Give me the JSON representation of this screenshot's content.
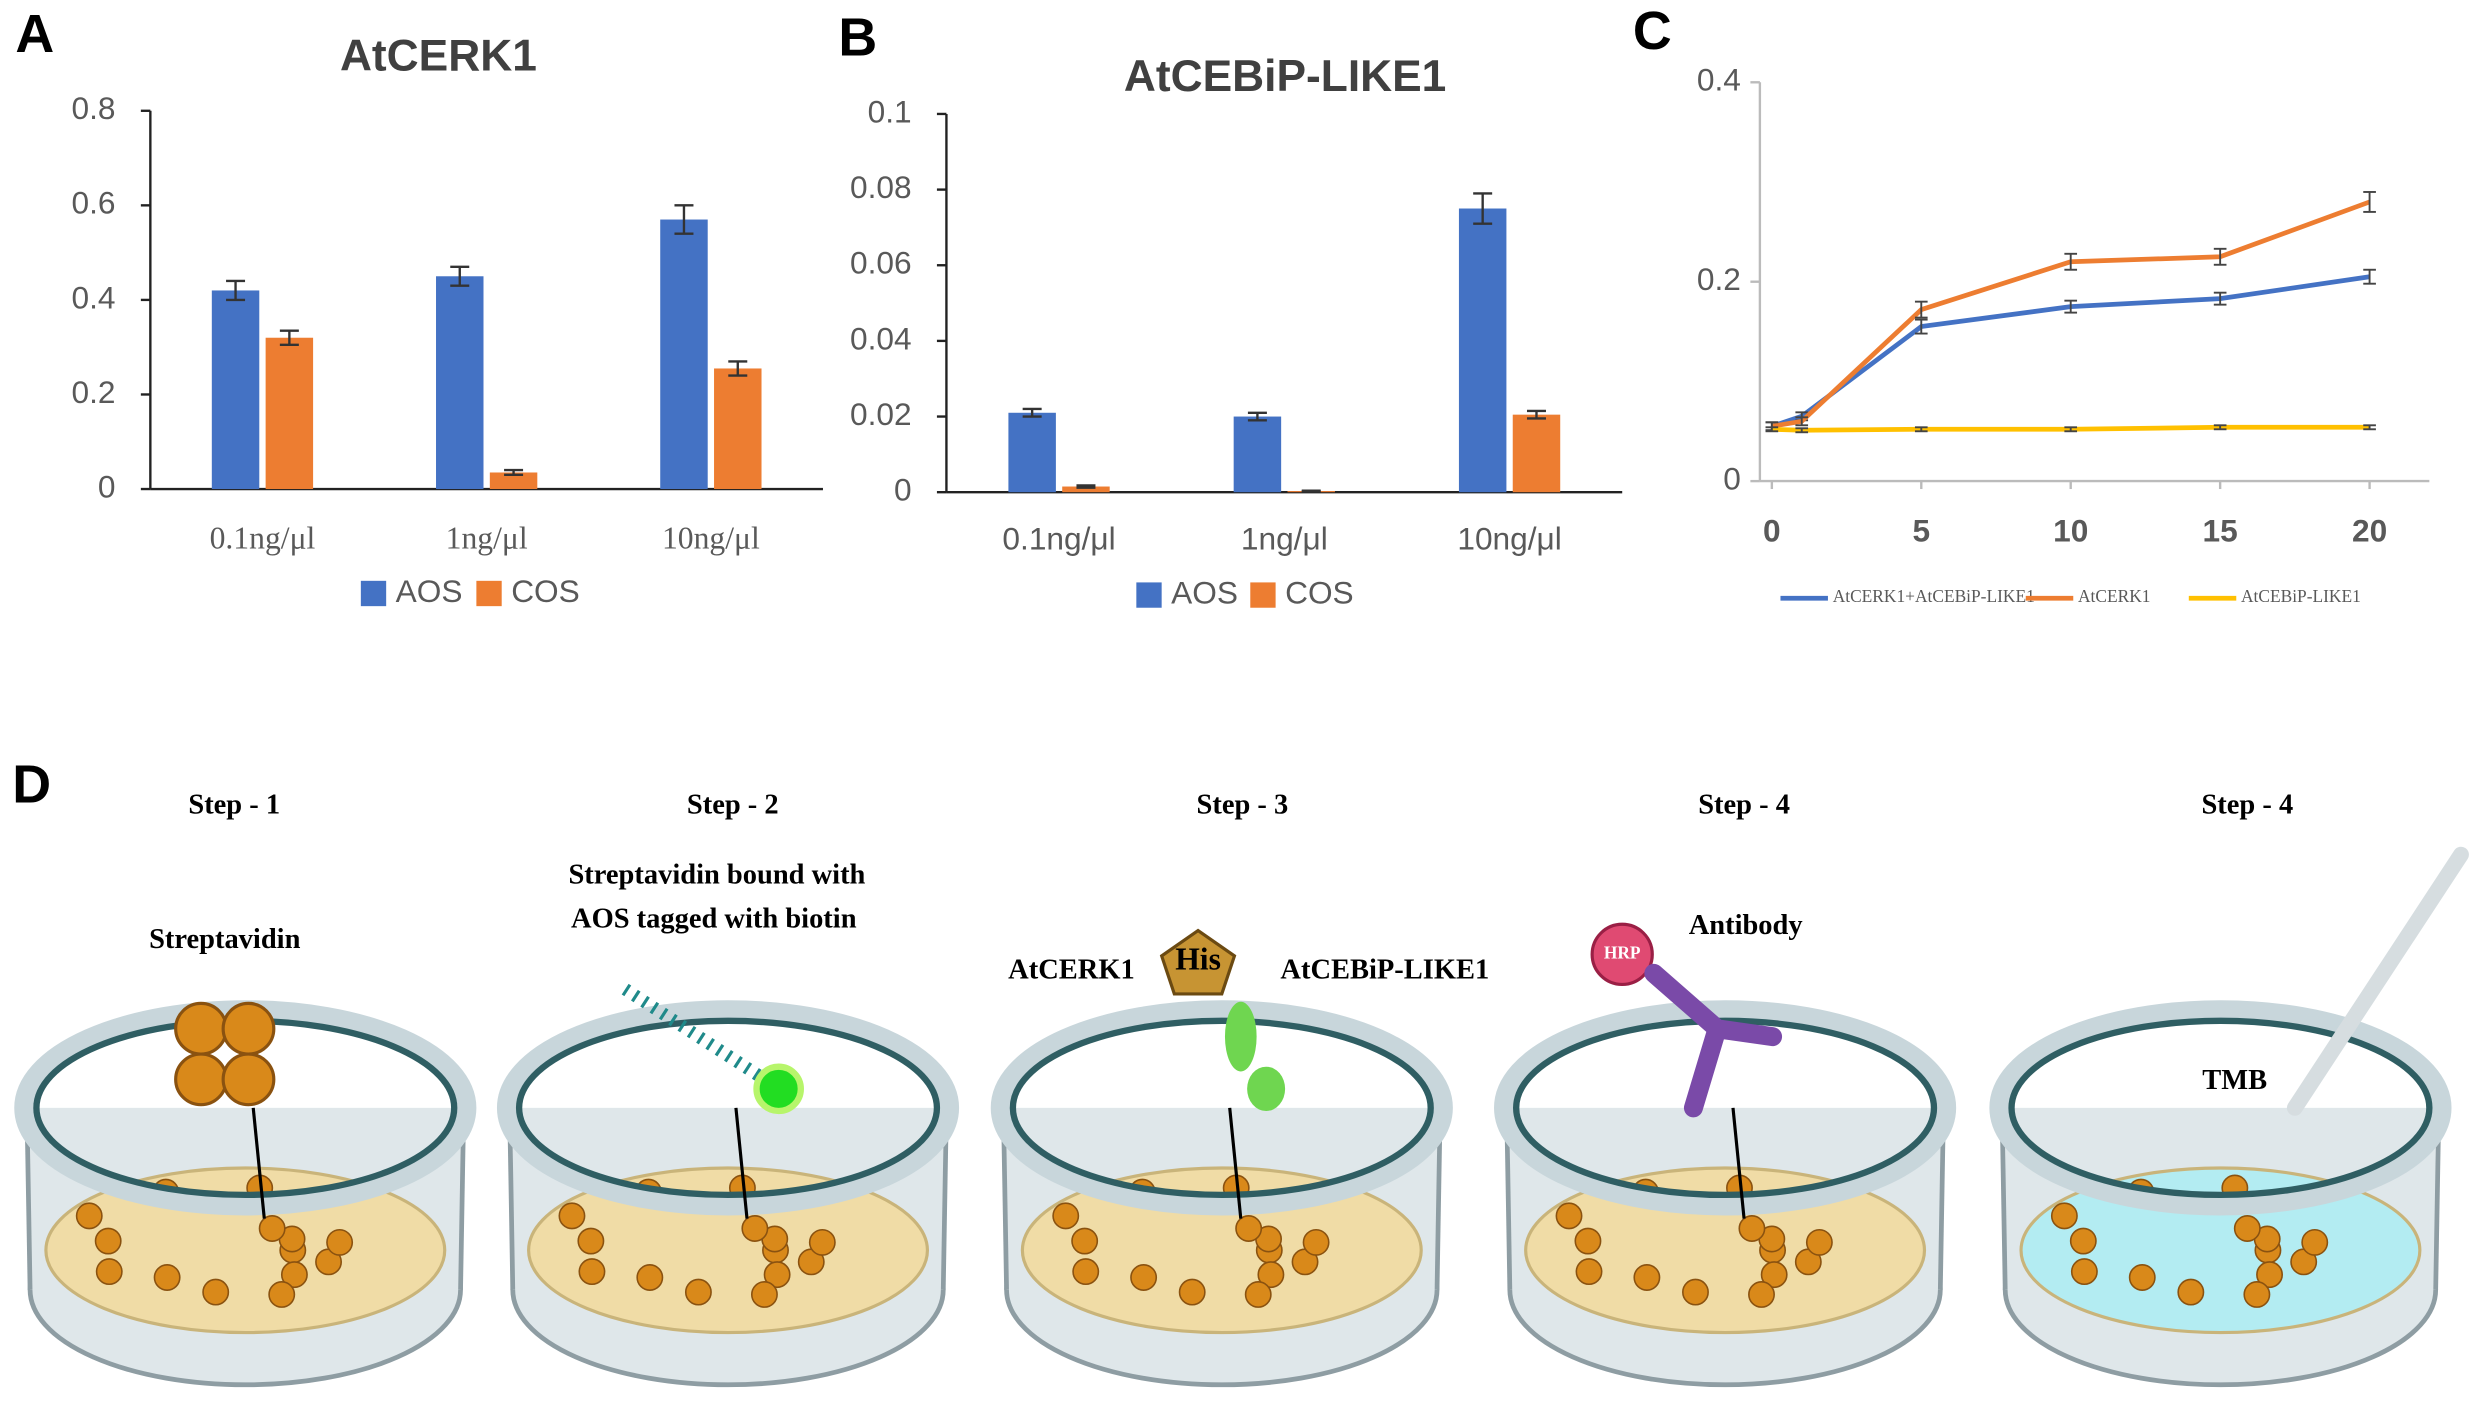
{
  "panel_labels": [
    "A",
    "B",
    "C",
    "D"
  ],
  "chart_data": [
    {
      "type": "bar",
      "title": "AtCERK1",
      "categories": [
        "0.1ng/μl",
        "1ng/μl",
        "10ng/μl"
      ],
      "series": [
        {
          "name": "AOS",
          "color": "#4472c4",
          "values": [
            0.42,
            0.45,
            0.57
          ],
          "errors": [
            0.02,
            0.02,
            0.03
          ]
        },
        {
          "name": "COS",
          "color": "#ed7d31",
          "values": [
            0.32,
            0.035,
            0.255
          ],
          "errors": [
            0.015,
            0.005,
            0.015
          ]
        }
      ],
      "ylim": [
        0,
        0.8
      ],
      "yticks": [
        0,
        0.2,
        0.4,
        0.6,
        0.8
      ],
      "grid": false
    },
    {
      "type": "bar",
      "title": "AtCEBiP-LIKE1",
      "categories": [
        "0.1ng/μl",
        "1ng/μl",
        "10ng/μl"
      ],
      "series": [
        {
          "name": "AOS",
          "color": "#4472c4",
          "values": [
            0.021,
            0.02,
            0.075
          ],
          "errors": [
            0.001,
            0.001,
            0.004
          ]
        },
        {
          "name": "COS",
          "color": "#ed7d31",
          "values": [
            0.0015,
            0.0003,
            0.0205
          ],
          "errors": [
            0.0003,
            0.0001,
            0.001
          ]
        }
      ],
      "ylim": [
        0,
        0.1
      ],
      "yticks": [
        0,
        0.02,
        0.04,
        0.06,
        0.08,
        0.1
      ],
      "grid": false
    },
    {
      "type": "line",
      "x": [
        0,
        1,
        5,
        10,
        15,
        20
      ],
      "series": [
        {
          "name": "AtCERK1+AtCEBiP-LIKE1",
          "color": "#4472c4",
          "values": [
            0.055,
            0.065,
            0.155,
            0.175,
            0.183,
            0.205
          ],
          "errors": [
            0.004,
            0.004,
            0.007,
            0.006,
            0.006,
            0.007
          ]
        },
        {
          "name": "AtCERK1",
          "color": "#ed7d31",
          "values": [
            0.055,
            0.06,
            0.172,
            0.22,
            0.225,
            0.28
          ],
          "errors": [
            0.004,
            0.004,
            0.008,
            0.008,
            0.008,
            0.01
          ]
        },
        {
          "name": "AtCEBiP-LIKE1",
          "color": "#ffc000",
          "values": [
            0.052,
            0.051,
            0.052,
            0.052,
            0.054,
            0.054
          ],
          "errors": [
            0.002,
            0.002,
            0.002,
            0.002,
            0.002,
            0.002
          ]
        }
      ],
      "xlim": [
        -0.4,
        22
      ],
      "xticks": [
        0,
        5,
        10,
        15,
        20
      ],
      "ylim": [
        0,
        0.4
      ],
      "yticks": [
        0,
        0.2,
        0.4
      ],
      "grid": false
    }
  ],
  "diagram": {
    "steps": [
      {
        "title": "Step - 1",
        "labels": [
          "Streptavidin"
        ]
      },
      {
        "title": "Step - 2",
        "labels": [
          "Streptavidin bound with",
          "AOS tagged with biotin"
        ]
      },
      {
        "title": "Step - 3",
        "labels": [
          "AtCERK1",
          "His",
          "AtCEBiP-LIKE1"
        ]
      },
      {
        "title": "Step - 4",
        "labels": [
          "HRP",
          "Antibody"
        ]
      },
      {
        "title": "Step - 4",
        "labels": [
          "TMB"
        ]
      }
    ]
  }
}
